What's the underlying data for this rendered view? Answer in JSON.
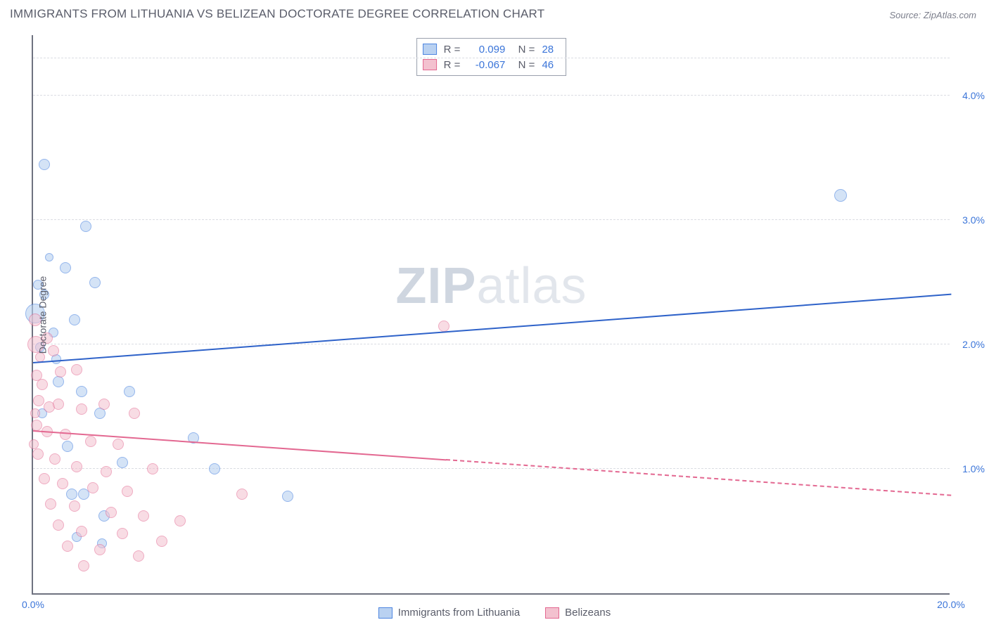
{
  "title": "IMMIGRANTS FROM LITHUANIA VS BELIZEAN DOCTORATE DEGREE CORRELATION CHART",
  "source": "Source: ZipAtlas.com",
  "watermark_a": "ZIP",
  "watermark_b": "atlas",
  "ylabel": "Doctorate Degree",
  "chart": {
    "type": "scatter",
    "background_color": "#ffffff",
    "axis_color": "#6f7280",
    "grid_color": "#dadde3",
    "tick_color": "#3b75d9",
    "label_color": "#5a5d6a",
    "label_fontsize": 14,
    "title_fontsize": 17,
    "xlim": [
      0,
      20
    ],
    "ylim": [
      0,
      4.5
    ],
    "xticks": [
      {
        "v": 0.0,
        "label": "0.0%"
      },
      {
        "v": 20.0,
        "label": "20.0%"
      }
    ],
    "yticks": [
      {
        "v": 1.0,
        "label": "1.0%"
      },
      {
        "v": 2.0,
        "label": "2.0%"
      },
      {
        "v": 3.0,
        "label": "3.0%"
      },
      {
        "v": 4.0,
        "label": "4.0%"
      }
    ],
    "series": [
      {
        "id": "lithuania",
        "legend_label": "Immigrants from Lithuania",
        "fill": "#b9d1f1",
        "stroke": "#4e86e0",
        "fill_opacity": 0.6,
        "R": "0.099",
        "N": "28",
        "regression": {
          "x0": 0,
          "y0": 1.85,
          "x1": 20,
          "y1": 2.4,
          "color": "#2e62c9",
          "dash_after_x": null
        },
        "points": [
          {
            "x": 0.25,
            "y": 3.45,
            "r": 8
          },
          {
            "x": 1.15,
            "y": 2.95,
            "r": 8
          },
          {
            "x": 0.7,
            "y": 2.62,
            "r": 8
          },
          {
            "x": 1.35,
            "y": 2.5,
            "r": 8
          },
          {
            "x": 0.1,
            "y": 2.48,
            "r": 7
          },
          {
            "x": 0.25,
            "y": 2.4,
            "r": 7
          },
          {
            "x": 0.05,
            "y": 2.25,
            "r": 14
          },
          {
            "x": 0.9,
            "y": 2.2,
            "r": 8
          },
          {
            "x": 0.45,
            "y": 2.1,
            "r": 7
          },
          {
            "x": 0.55,
            "y": 1.7,
            "r": 8
          },
          {
            "x": 1.05,
            "y": 1.62,
            "r": 8
          },
          {
            "x": 2.1,
            "y": 1.62,
            "r": 8
          },
          {
            "x": 1.45,
            "y": 1.45,
            "r": 8
          },
          {
            "x": 0.2,
            "y": 1.45,
            "r": 7
          },
          {
            "x": 3.5,
            "y": 1.25,
            "r": 8
          },
          {
            "x": 0.75,
            "y": 1.18,
            "r": 8
          },
          {
            "x": 1.95,
            "y": 1.05,
            "r": 8
          },
          {
            "x": 3.95,
            "y": 1.0,
            "r": 8
          },
          {
            "x": 5.55,
            "y": 0.78,
            "r": 8
          },
          {
            "x": 1.1,
            "y": 0.8,
            "r": 8
          },
          {
            "x": 0.85,
            "y": 0.8,
            "r": 8
          },
          {
            "x": 1.55,
            "y": 0.62,
            "r": 8
          },
          {
            "x": 0.95,
            "y": 0.45,
            "r": 7
          },
          {
            "x": 1.5,
            "y": 0.4,
            "r": 7
          },
          {
            "x": 0.5,
            "y": 1.88,
            "r": 7
          },
          {
            "x": 0.15,
            "y": 1.98,
            "r": 7
          },
          {
            "x": 17.6,
            "y": 3.2,
            "r": 9
          },
          {
            "x": 0.35,
            "y": 2.7,
            "r": 6
          }
        ]
      },
      {
        "id": "belize",
        "legend_label": "Belizeans",
        "fill": "#f3c1cf",
        "stroke": "#e36891",
        "fill_opacity": 0.55,
        "R": "-0.067",
        "N": "46",
        "regression": {
          "x0": 0,
          "y0": 1.3,
          "x1": 20,
          "y1": 0.78,
          "color": "#e36891",
          "dash_after_x": 9.0
        },
        "points": [
          {
            "x": 0.05,
            "y": 2.2,
            "r": 9
          },
          {
            "x": 0.06,
            "y": 2.0,
            "r": 12
          },
          {
            "x": 0.3,
            "y": 2.05,
            "r": 8
          },
          {
            "x": 0.45,
            "y": 1.95,
            "r": 8
          },
          {
            "x": 0.08,
            "y": 1.75,
            "r": 8
          },
          {
            "x": 0.2,
            "y": 1.68,
            "r": 8
          },
          {
            "x": 0.6,
            "y": 1.78,
            "r": 8
          },
          {
            "x": 0.95,
            "y": 1.8,
            "r": 8
          },
          {
            "x": 0.12,
            "y": 1.55,
            "r": 8
          },
          {
            "x": 0.35,
            "y": 1.5,
            "r": 8
          },
          {
            "x": 0.55,
            "y": 1.52,
            "r": 8
          },
          {
            "x": 1.05,
            "y": 1.48,
            "r": 8
          },
          {
            "x": 1.55,
            "y": 1.52,
            "r": 8
          },
          {
            "x": 2.2,
            "y": 1.45,
            "r": 8
          },
          {
            "x": 0.08,
            "y": 1.35,
            "r": 8
          },
          {
            "x": 0.3,
            "y": 1.3,
            "r": 8
          },
          {
            "x": 0.7,
            "y": 1.28,
            "r": 8
          },
          {
            "x": 1.25,
            "y": 1.22,
            "r": 8
          },
          {
            "x": 1.85,
            "y": 1.2,
            "r": 8
          },
          {
            "x": 0.1,
            "y": 1.12,
            "r": 8
          },
          {
            "x": 0.48,
            "y": 1.08,
            "r": 8
          },
          {
            "x": 0.95,
            "y": 1.02,
            "r": 8
          },
          {
            "x": 1.6,
            "y": 0.98,
            "r": 8
          },
          {
            "x": 2.6,
            "y": 1.0,
            "r": 8
          },
          {
            "x": 0.25,
            "y": 0.92,
            "r": 8
          },
          {
            "x": 0.65,
            "y": 0.88,
            "r": 8
          },
          {
            "x": 1.3,
            "y": 0.85,
            "r": 8
          },
          {
            "x": 2.05,
            "y": 0.82,
            "r": 8
          },
          {
            "x": 4.55,
            "y": 0.8,
            "r": 8
          },
          {
            "x": 0.38,
            "y": 0.72,
            "r": 8
          },
          {
            "x": 0.9,
            "y": 0.7,
            "r": 8
          },
          {
            "x": 1.7,
            "y": 0.65,
            "r": 8
          },
          {
            "x": 2.4,
            "y": 0.62,
            "r": 8
          },
          {
            "x": 3.2,
            "y": 0.58,
            "r": 8
          },
          {
            "x": 0.55,
            "y": 0.55,
            "r": 8
          },
          {
            "x": 1.05,
            "y": 0.5,
            "r": 8
          },
          {
            "x": 1.95,
            "y": 0.48,
            "r": 8
          },
          {
            "x": 2.8,
            "y": 0.42,
            "r": 8
          },
          {
            "x": 0.75,
            "y": 0.38,
            "r": 8
          },
          {
            "x": 1.45,
            "y": 0.35,
            "r": 8
          },
          {
            "x": 2.3,
            "y": 0.3,
            "r": 8
          },
          {
            "x": 1.1,
            "y": 0.22,
            "r": 8
          },
          {
            "x": 8.95,
            "y": 2.15,
            "r": 8
          },
          {
            "x": 0.15,
            "y": 1.9,
            "r": 7
          },
          {
            "x": 0.05,
            "y": 1.45,
            "r": 7
          },
          {
            "x": 0.02,
            "y": 1.2,
            "r": 7
          }
        ]
      }
    ]
  }
}
